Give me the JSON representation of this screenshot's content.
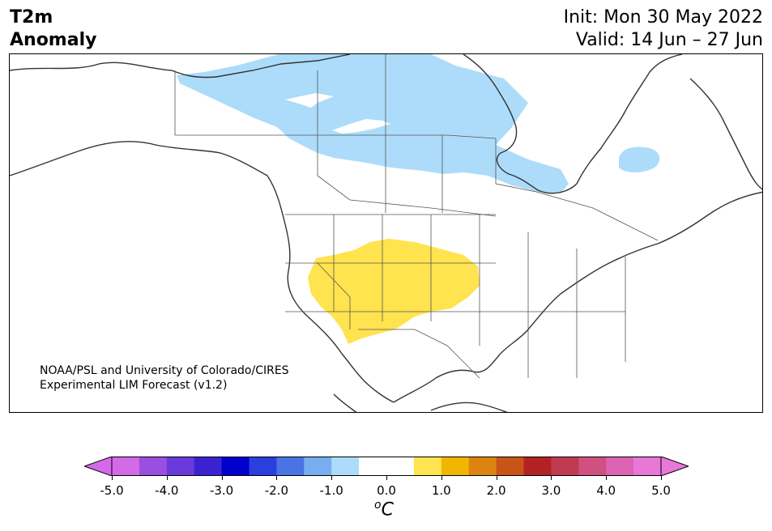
{
  "title": {
    "left_line1": "T2m",
    "left_line2": "Anomaly",
    "right_line1": "Init: Mon 30 May 2022",
    "right_line2": "Valid: 14 Jun – 27 Jun"
  },
  "credit": {
    "line1": "NOAA/PSL and University of Colorado/CIRES",
    "line2": "Experimental LIM Forecast (v1.2)"
  },
  "colorbar": {
    "unit_base": "C",
    "unit_sup": "o",
    "ticks": [
      "-5.0",
      "-4.0",
      "-3.0",
      "-2.0",
      "-1.0",
      "0.0",
      "1.0",
      "2.0",
      "3.0",
      "4.0",
      "5.0"
    ],
    "colors": [
      "#d56ae8",
      "#9a4fe0",
      "#6a3adb",
      "#3a22d3",
      "#0000cc",
      "#2a3fdd",
      "#4a74e6",
      "#78aef0",
      "#acdcfa",
      "#ffffff",
      "#ffffff",
      "#ffe34f",
      "#f2b600",
      "#dc8410",
      "#c85418",
      "#b22222",
      "#c03a50",
      "#d05080",
      "#dc64b2",
      "#e878d8"
    ],
    "under_color": "#d56ae8",
    "over_color": "#e878d8"
  },
  "map": {
    "region": "North America",
    "anomaly_regions": [
      {
        "name": "Northern Canada cool anomaly",
        "color": "#acdcfa"
      },
      {
        "name": "Hudson Bay east cool anomaly",
        "color": "#acdcfa"
      },
      {
        "name": "US Southwest warm anomaly",
        "color": "#ffe34f"
      }
    ]
  }
}
